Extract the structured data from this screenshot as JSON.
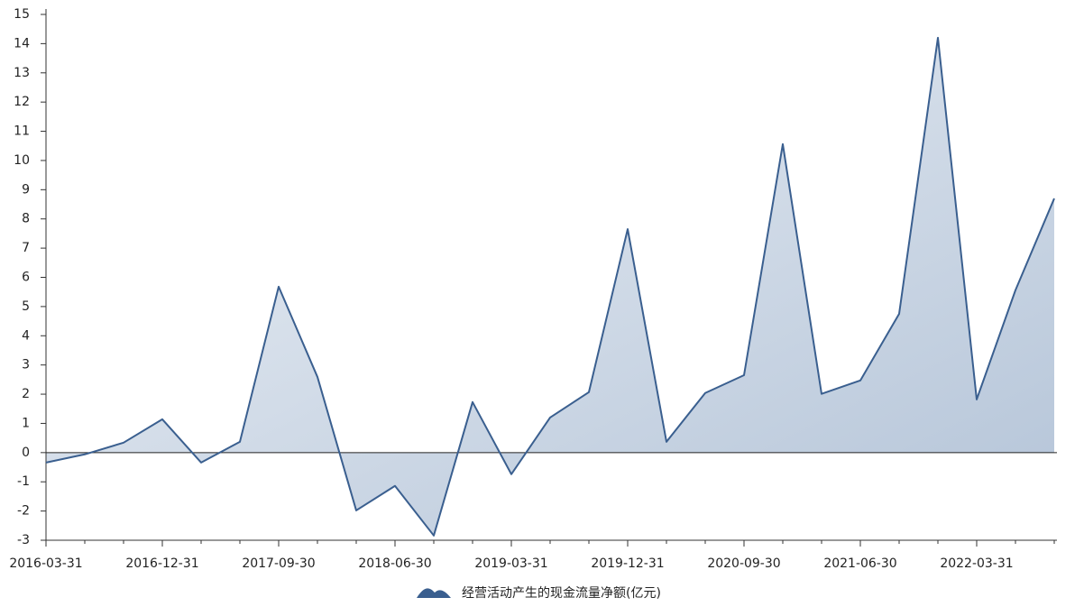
{
  "chart_data": {
    "type": "area",
    "categories": [
      "2016-03-31",
      null,
      null,
      "2016-12-31",
      null,
      null,
      "2017-09-30",
      null,
      null,
      "2018-06-30",
      null,
      null,
      "2019-03-31",
      null,
      null,
      "2019-12-31",
      null,
      null,
      "2020-09-30",
      null,
      null,
      "2021-06-30",
      null,
      null,
      "2022-03-31",
      null,
      null
    ],
    "series": [
      {
        "name": "经营活动产生的现金流量净额(亿元)",
        "color": "#3a5f8f",
        "values": [
          -0.34,
          -0.06,
          0.34,
          1.14,
          -0.34,
          0.37,
          5.68,
          2.59,
          -1.98,
          -1.14,
          -2.84,
          1.73,
          -0.74,
          1.2,
          2.07,
          7.65,
          0.37,
          2.04,
          2.65,
          10.56,
          2.01,
          2.47,
          4.75,
          14.2,
          1.82,
          5.56,
          8.7
        ]
      }
    ],
    "ylim": [
      -3,
      15
    ],
    "yticks": [
      -3,
      -2,
      -1,
      0,
      1,
      2,
      3,
      4,
      5,
      6,
      7,
      8,
      9,
      10,
      11,
      12,
      13,
      14,
      15
    ],
    "legend": "bottom"
  }
}
